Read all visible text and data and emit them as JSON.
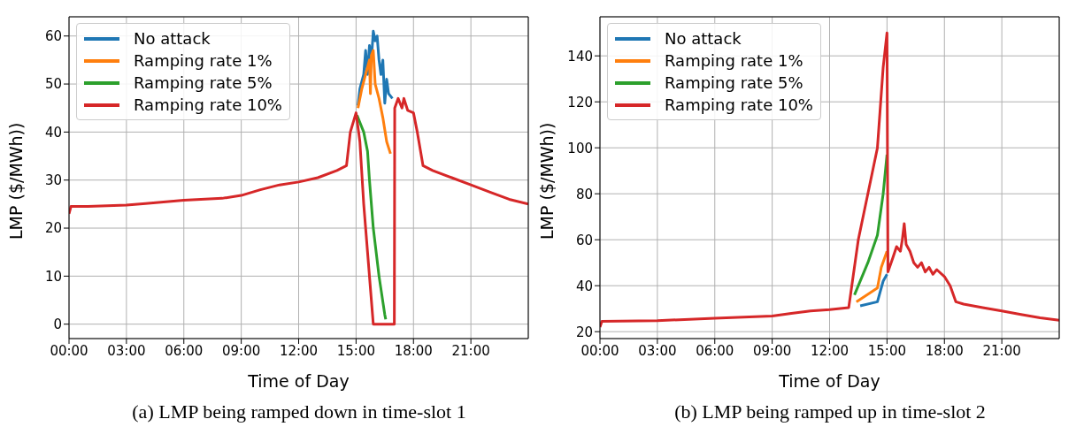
{
  "chart_data": [
    {
      "type": "line",
      "xlabel": "Time of Day",
      "ylabel": "LMP ($/MWh))",
      "annotations": [
        "(a) LMP being ramped down in time-slot 1"
      ],
      "xlim": [
        0,
        24
      ],
      "xticks": [
        {
          "value": 0,
          "label": "00:00"
        },
        {
          "value": 3,
          "label": "03:00"
        },
        {
          "value": 6,
          "label": "06:00"
        },
        {
          "value": 9,
          "label": "09:00"
        },
        {
          "value": 12,
          "label": "12:00"
        },
        {
          "value": 15,
          "label": "15:00"
        },
        {
          "value": 18,
          "label": "18:00"
        },
        {
          "value": 21,
          "label": "21:00"
        }
      ],
      "ylim": [
        -3,
        64
      ],
      "yticks": [
        0,
        10,
        20,
        30,
        40,
        50,
        60
      ],
      "grid": true,
      "legend": "top left",
      "line_style": "solid",
      "marker": "none",
      "series": [
        {
          "name": "No attack",
          "color": "#1f77b4",
          "x": [
            15.1,
            15.2,
            15.4,
            15.5,
            15.6,
            15.7,
            15.8,
            15.9,
            16,
            16.1,
            16.2,
            16.3,
            16.4,
            16.5,
            16.6,
            16.7,
            16.9
          ],
          "values": [
            45.5,
            49,
            52,
            57,
            52,
            58,
            55,
            61,
            59,
            60,
            55,
            52,
            55,
            46,
            51,
            48,
            47
          ]
        },
        {
          "name": "Ramping rate 1%",
          "color": "#ff7f0e",
          "x": [
            15.1,
            15.3,
            15.5,
            15.7,
            15.75,
            15.8,
            15.9,
            16,
            16.2,
            16.4,
            16.6,
            16.8
          ],
          "values": [
            45,
            49,
            52,
            55,
            48,
            56,
            57,
            50,
            47,
            43,
            38,
            35.5
          ]
        },
        {
          "name": "Ramping rate 5%",
          "color": "#2ca02c",
          "x": [
            15.05,
            15.2,
            15.4,
            15.6,
            15.7,
            15.9,
            16.2,
            16.5,
            16.55
          ],
          "values": [
            43.5,
            42,
            40,
            36,
            30,
            20,
            10,
            2,
            1
          ]
        },
        {
          "name": "Ramping rate 10%",
          "color": "#d62728",
          "x": [
            0,
            0.1,
            1,
            3,
            4,
            6,
            8,
            9,
            10,
            11,
            12,
            13,
            14,
            14.5,
            14.7,
            15,
            15.2,
            15.4,
            15.6,
            15.8,
            15.9,
            17,
            17.02,
            17.2,
            17.4,
            17.5,
            17.7,
            18,
            18.2,
            18.5,
            19,
            20,
            21,
            22,
            23,
            24
          ],
          "values": [
            23,
            24.5,
            24.5,
            24.8,
            25.1,
            25.8,
            26.2,
            26.8,
            28,
            29,
            29.6,
            30.5,
            32,
            33,
            40,
            44,
            38,
            25,
            15,
            5,
            0,
            0,
            45,
            47,
            45,
            47,
            44.5,
            44,
            40,
            33,
            32,
            30.5,
            29,
            27.5,
            26,
            25
          ]
        }
      ]
    },
    {
      "type": "line",
      "xlabel": "Time of Day",
      "ylabel": "LMP ($/MWh))",
      "annotations": [
        "(b) LMP being ramped up in time-slot 2"
      ],
      "xlim": [
        0,
        24
      ],
      "xticks": [
        {
          "value": 0,
          "label": "00:00"
        },
        {
          "value": 3,
          "label": "03:00"
        },
        {
          "value": 6,
          "label": "06:00"
        },
        {
          "value": 9,
          "label": "09:00"
        },
        {
          "value": 12,
          "label": "12:00"
        },
        {
          "value": 15,
          "label": "15:00"
        },
        {
          "value": 18,
          "label": "18:00"
        },
        {
          "value": 21,
          "label": "21:00"
        }
      ],
      "ylim": [
        17,
        157
      ],
      "yticks": [
        20,
        40,
        60,
        80,
        100,
        120,
        140
      ],
      "grid": true,
      "legend": "top left",
      "line_style": "solid",
      "marker": "none",
      "series": [
        {
          "name": "No attack",
          "color": "#1f77b4",
          "x": [
            13.6,
            14.5,
            14.8,
            15
          ],
          "values": [
            31.2,
            33,
            42,
            45
          ]
        },
        {
          "name": "Ramping rate 1%",
          "color": "#ff7f0e",
          "x": [
            13.4,
            14.5,
            14.7,
            15
          ],
          "values": [
            33,
            39,
            48,
            55
          ]
        },
        {
          "name": "Ramping rate 5%",
          "color": "#2ca02c",
          "x": [
            13.3,
            14,
            14.5,
            14.8,
            15
          ],
          "values": [
            36,
            50,
            62,
            80,
            97
          ]
        },
        {
          "name": "Ramping rate 10%",
          "color": "#d62728",
          "x": [
            0,
            0.1,
            3,
            6,
            9,
            10,
            11,
            12,
            13,
            13.5,
            14,
            14.5,
            14.8,
            15,
            15.05,
            15.3,
            15.5,
            15.7,
            15.8,
            15.9,
            16,
            16.2,
            16.4,
            16.6,
            16.8,
            17,
            17.2,
            17.4,
            17.6,
            18,
            18.3,
            18.6,
            19,
            20,
            21,
            22,
            23,
            24
          ],
          "values": [
            22,
            24.5,
            24.8,
            25.8,
            26.8,
            28,
            29,
            29.6,
            30.5,
            60,
            80,
            100,
            135,
            150,
            46,
            52,
            57,
            55,
            60,
            67,
            58,
            55,
            50,
            48,
            50,
            46,
            48,
            45,
            47,
            44,
            40,
            33,
            32,
            30.5,
            29,
            27.5,
            26,
            25
          ]
        }
      ]
    }
  ]
}
